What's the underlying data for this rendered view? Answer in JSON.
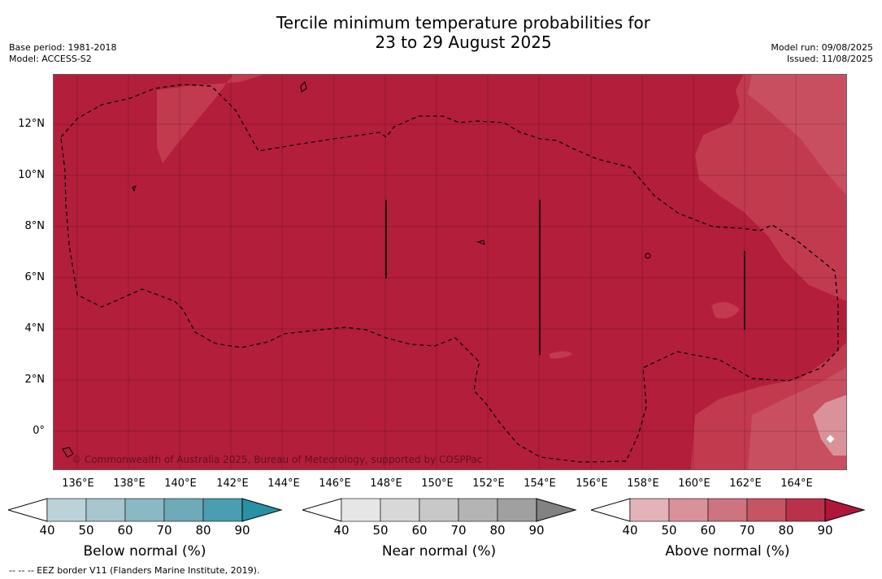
{
  "title": {
    "line1": "Tercile minimum temperature probabilities for",
    "line2": "23 to 29 August 2025"
  },
  "meta": {
    "base_period": "Base period: 1981-2018",
    "model": "Model: ACCESS-S2",
    "model_run": "Model run: 09/08/2025",
    "issued": "Issued: 11/08/2025"
  },
  "map": {
    "lat_labels": [
      "12°N",
      "10°N",
      "8°N",
      "6°N",
      "4°N",
      "2°N",
      "0°"
    ],
    "lon_labels": [
      "136°E",
      "138°E",
      "140°E",
      "142°E",
      "144°E",
      "146°E",
      "148°E",
      "150°E",
      "152°E",
      "154°E",
      "156°E",
      "158°E",
      "160°E",
      "162°E",
      "164°E"
    ],
    "copyright": "© Commonwealth of Australia 2025, Bureau of Meteorology, supported by COSPPac",
    "colors": {
      "above_80": "#b31e3a",
      "above_70": "#c23a4e",
      "above_60": "#c84f5f",
      "above_50": "#d9929a",
      "above_40": "#e2b3b8"
    }
  },
  "colorbars": [
    {
      "title": "Below normal (%)",
      "ticks": [
        "40",
        "50",
        "60",
        "70",
        "80",
        "90"
      ],
      "colors": [
        "#bcd2d9",
        "#a7c6cd",
        "#8ab8c3",
        "#6eaab8",
        "#4a9eb0",
        "#2991a6"
      ]
    },
    {
      "title": "Near normal (%)",
      "ticks": [
        "40",
        "50",
        "60",
        "70",
        "80",
        "90"
      ],
      "colors": [
        "#e6e6e6",
        "#d8d8d8",
        "#c8c8c8",
        "#b4b4b4",
        "#a0a0a0",
        "#828282"
      ]
    },
    {
      "title": "Above normal (%)",
      "ticks": [
        "40",
        "50",
        "60",
        "70",
        "80",
        "90"
      ],
      "colors": [
        "#e2b3b8",
        "#d9929a",
        "#cd7480",
        "#c55563",
        "#ba3249",
        "#b0163a"
      ]
    }
  ],
  "footer": {
    "eez_note": "--  --  -- EEZ border V11 (Flanders Marine Institute, 2019)."
  }
}
